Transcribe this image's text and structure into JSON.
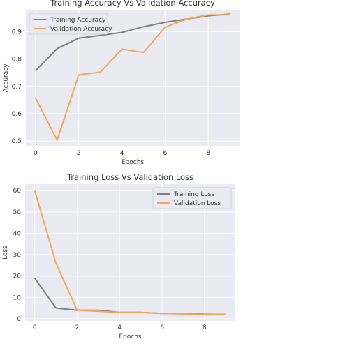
{
  "chart_data": [
    {
      "type": "line",
      "title": "Training Accuracy Vs Validation Accuracy",
      "xlabel": "Epochs",
      "ylabel": "Accuracy",
      "xlim": [
        -0.45,
        9.45
      ],
      "ylim": [
        0.48,
        0.98
      ],
      "xticks": [
        0,
        2,
        4,
        6,
        8
      ],
      "yticks": [
        0.5,
        0.6,
        0.7,
        0.8,
        0.9
      ],
      "grid": true,
      "legend": "top-left",
      "x": [
        0,
        1,
        2,
        3,
        4,
        5,
        6,
        7,
        8,
        9
      ],
      "series": [
        {
          "name": "Training Accuracy",
          "color": "#7f7f7f",
          "values": [
            0.757,
            0.838,
            0.876,
            0.886,
            0.897,
            0.918,
            0.934,
            0.946,
            0.958,
            0.964
          ]
        },
        {
          "name": "Validation Accuracy",
          "color": "#f2a65a",
          "values": [
            0.657,
            0.503,
            0.742,
            0.752,
            0.836,
            0.824,
            0.916,
            0.946,
            0.961,
            0.962
          ]
        }
      ]
    },
    {
      "type": "line",
      "title": "Training Loss Vs Validation Loss",
      "xlabel": "Epochs",
      "ylabel": "Loss",
      "xlim": [
        -0.45,
        9.45
      ],
      "ylim": [
        -1,
        63
      ],
      "xticks": [
        0,
        2,
        4,
        6,
        8
      ],
      "yticks": [
        0,
        10,
        20,
        30,
        40,
        50,
        60
      ],
      "grid": true,
      "legend": "top-right",
      "x": [
        0,
        1,
        2,
        3,
        4,
        5,
        6,
        7,
        8,
        9
      ],
      "series": [
        {
          "name": "Training Loss",
          "color": "#7f7f7f",
          "values": [
            19,
            5,
            4,
            4,
            3,
            3,
            2.5,
            2.5,
            2.2,
            2
          ]
        },
        {
          "name": "Validation Loss",
          "color": "#f2a65a",
          "values": [
            60,
            26,
            4,
            3.5,
            3,
            3,
            2.5,
            2.3,
            2.1,
            2
          ]
        }
      ]
    }
  ]
}
